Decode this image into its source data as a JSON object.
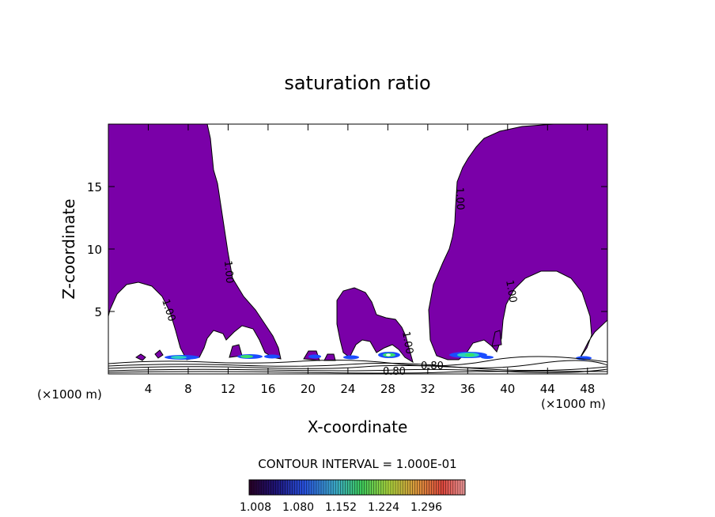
{
  "chart_data": {
    "type": "contour",
    "title": "saturation ratio",
    "xlabel": "X-coordinate",
    "ylabel": "Z-coordinate",
    "x_unit_label": "(×1000 m)",
    "z_unit_label": "(×1000 m)",
    "xlim": [
      0,
      50
    ],
    "ylim": [
      0,
      20
    ],
    "x_ticks": [
      4,
      8,
      12,
      16,
      20,
      24,
      28,
      32,
      36,
      40,
      44,
      48
    ],
    "y_ticks": [
      5,
      10,
      15
    ],
    "contour_labels": [
      "1.00",
      "1.00",
      "1.00",
      "1.00",
      "1.00",
      "0.80",
      "0.80"
    ],
    "contour_interval_text": "CONTOUR INTERVAL = 1.000E-01",
    "colorbar": {
      "tick_labels": [
        "1.008",
        "1.080",
        "1.152",
        "1.224",
        "1.296"
      ],
      "min": 1.008,
      "max": 1.296
    },
    "fill_color": "#7a00a8"
  }
}
